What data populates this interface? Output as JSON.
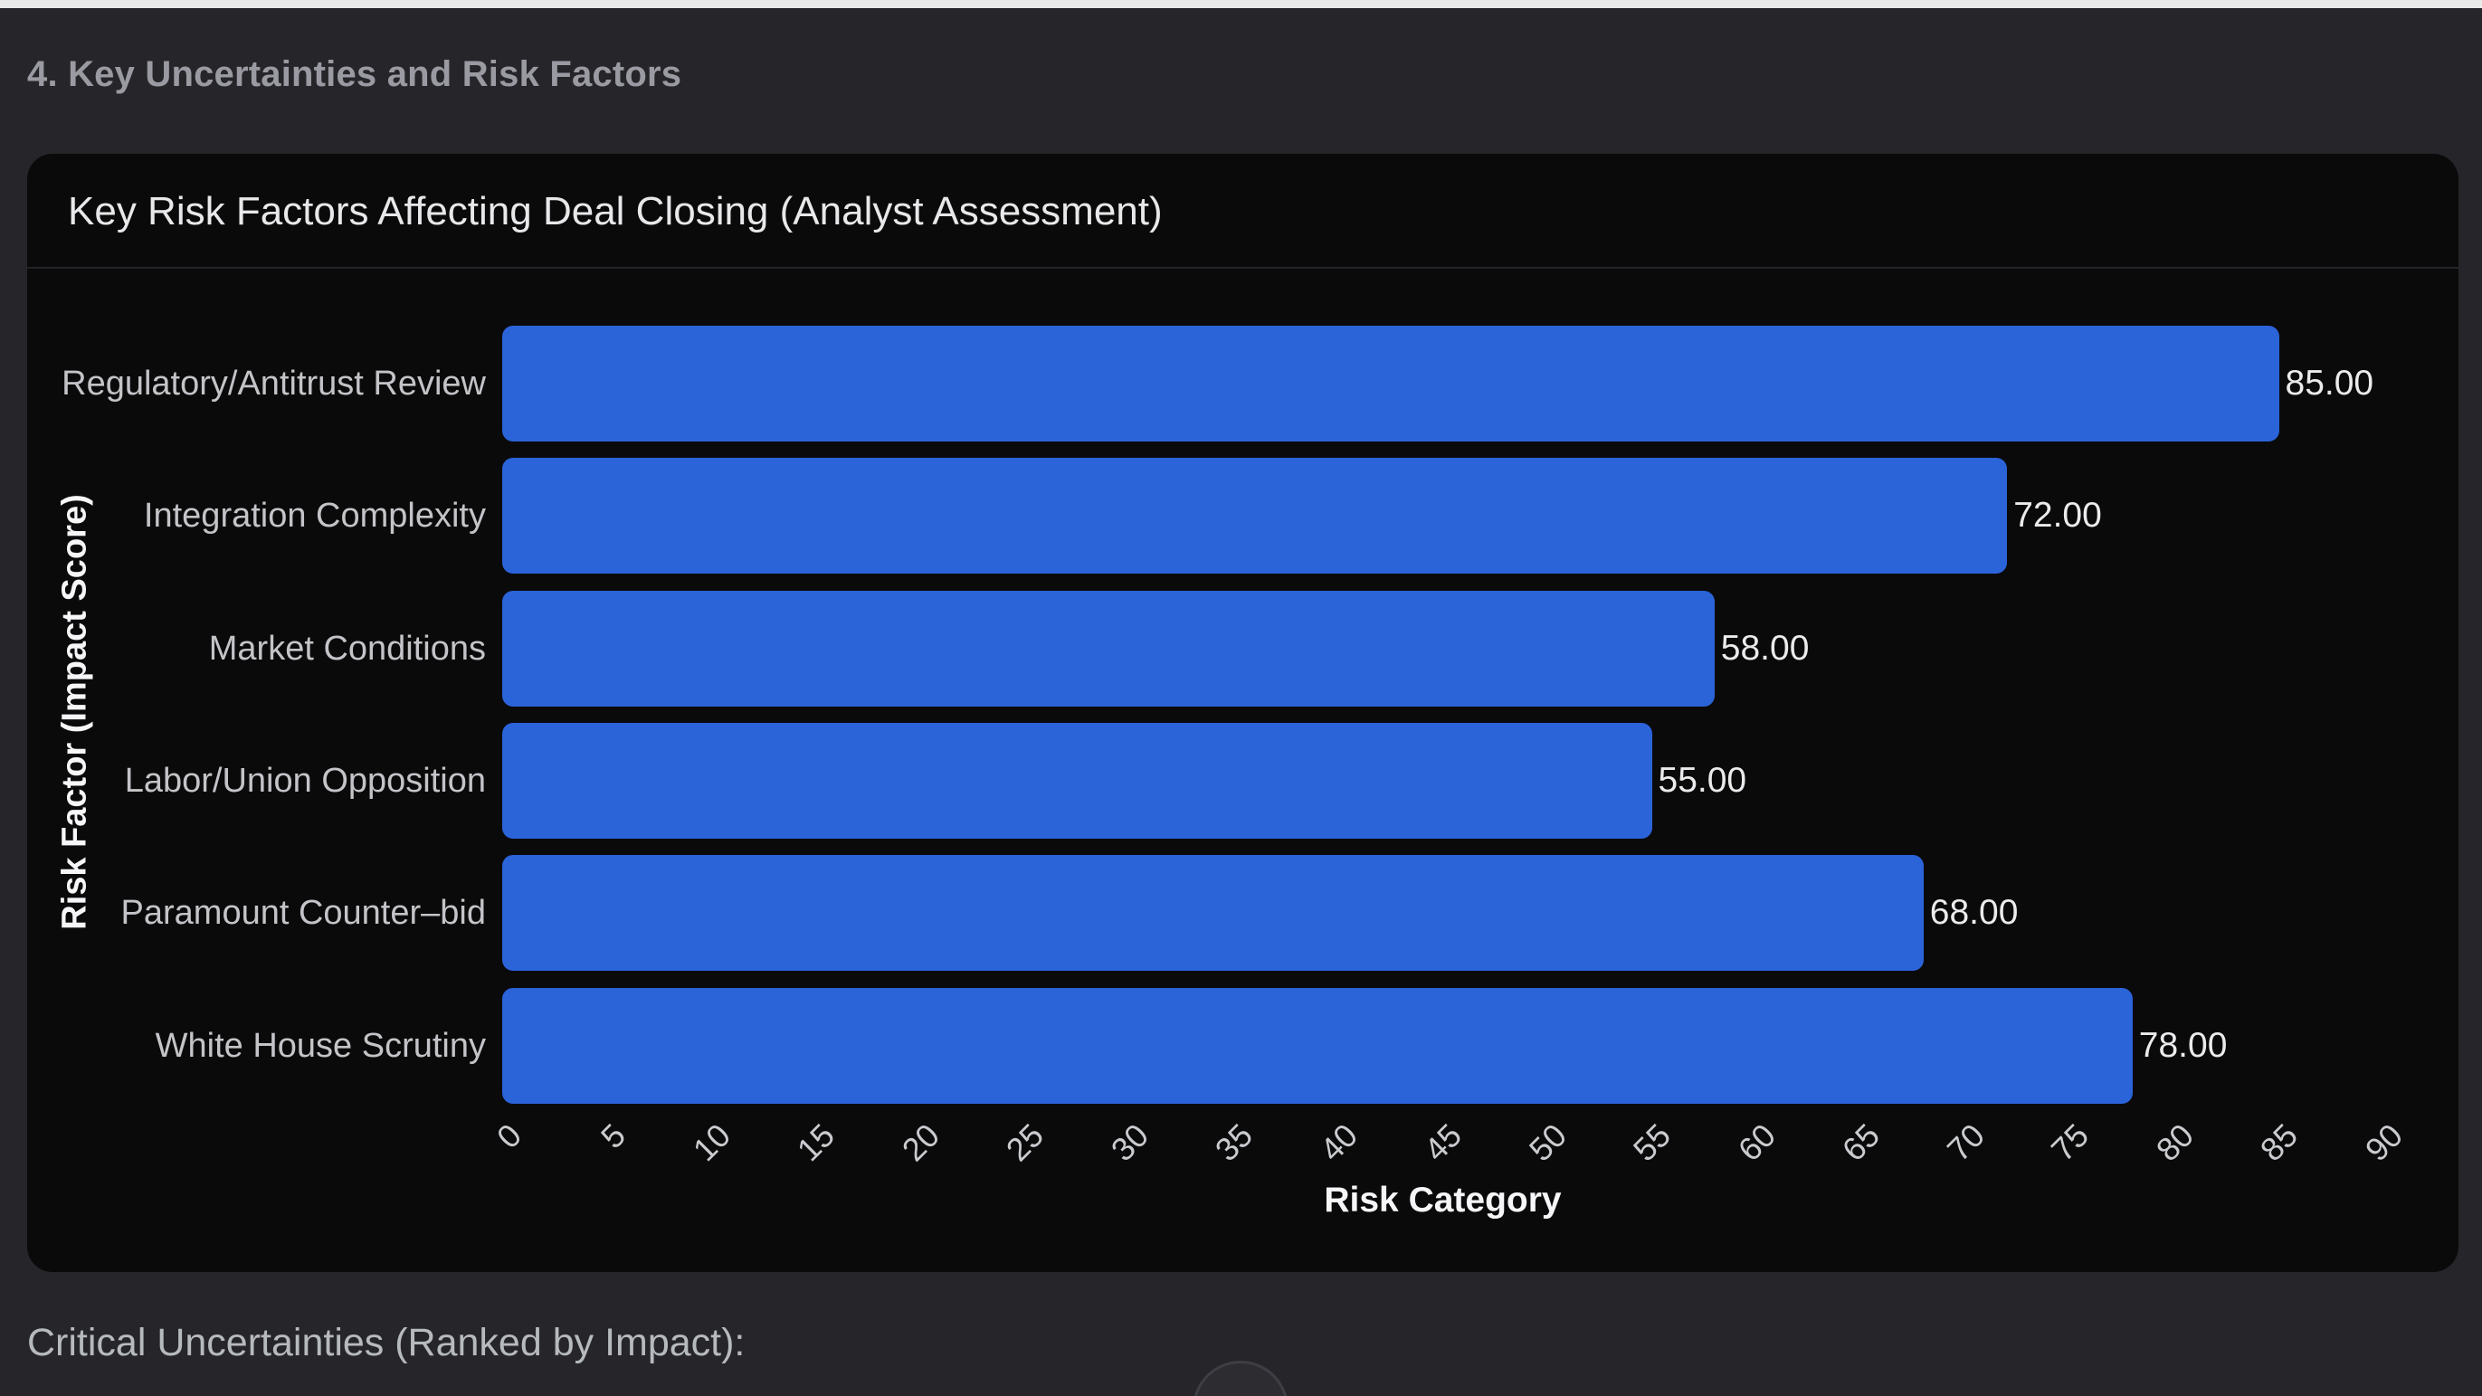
{
  "page": {
    "section_title": "4. Key Uncertainties and Risk Factors",
    "footer_note": "Critical Uncertainties (Ranked by Impact):"
  },
  "chart_data": {
    "type": "bar",
    "orientation": "horizontal",
    "title": "Key Risk Factors Affecting Deal Closing (Analyst Assessment)",
    "categories": [
      "Regulatory/Antitrust Review",
      "Integration Complexity",
      "Market Conditions",
      "Labor/Union Opposition",
      "Paramount Counter–bid",
      "White House Scrutiny"
    ],
    "values": [
      85,
      72,
      58,
      55,
      68,
      78
    ],
    "value_labels": [
      "85.00",
      "72.00",
      "58.00",
      "55.00",
      "68.00",
      "78.00"
    ],
    "xlabel": "Risk Category",
    "ylabel": "Risk Factor (Impact Score)",
    "xlim": [
      0,
      90
    ],
    "xticks": [
      0,
      5,
      10,
      15,
      20,
      25,
      30,
      35,
      40,
      45,
      50,
      55,
      60,
      65,
      70,
      75,
      80,
      85,
      90
    ],
    "grid": false,
    "legend": null,
    "bar_color": "#2b63d9",
    "plot_background": "#0a0a0b"
  },
  "colors": {
    "page_background": "#26262a",
    "panel_background": "#0a0a0b",
    "top_strip": "#e9e9ea",
    "bar": "#2b63d9",
    "title_text": "#e8e8ea",
    "category_text": "#c4c4c8",
    "value_text": "#ebebed",
    "axis_label_text": "#f6f6f8",
    "tick_text": "#c9cbce",
    "section_title_text": "#9a9aa2",
    "footer_text": "#b7babd"
  }
}
